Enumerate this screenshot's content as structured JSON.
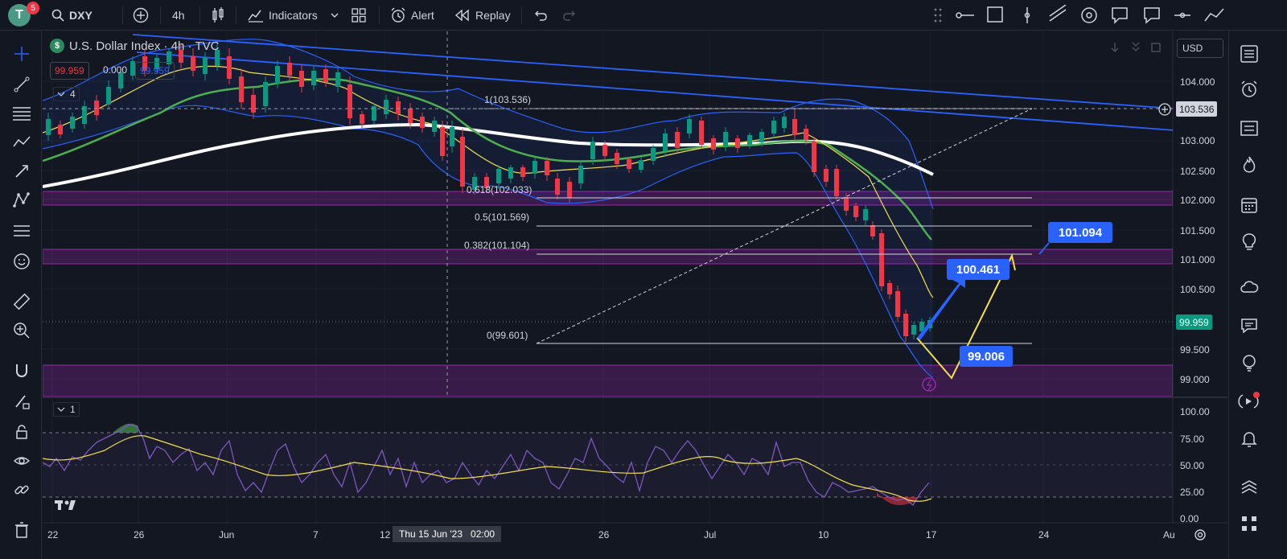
{
  "topbar": {
    "avatar_letter": "T",
    "notifications": "5",
    "symbol": "DXY",
    "interval": "4h",
    "indicators_label": "Indicators",
    "alert_label": "Alert",
    "replay_label": "Replay"
  },
  "legend": {
    "title": "U.S. Dollar Index · 4h · TVC",
    "bid": "99.959",
    "spread": "0.000",
    "ask": "99.959",
    "indicator_count": "4",
    "rsi_count": "1"
  },
  "currency": "USD",
  "fib_labels": {
    "f1": "1(103.536)",
    "f0618": "0.618(102.033)",
    "f05": "0.5(101.569)",
    "f0382": "0.382(101.104)",
    "f0": "0(99.601)"
  },
  "price_axis": [
    "104.000",
    "103.500",
    "103.000",
    "102.500",
    "102.000",
    "101.500",
    "101.000",
    "100.500",
    "100.000",
    "99.500",
    "99.000"
  ],
  "rsi_axis": [
    "100.00",
    "75.00",
    "50.00",
    "25.00",
    "0.00"
  ],
  "time_axis": [
    "22",
    "26",
    "Jun",
    "7",
    "12",
    "Thu 15 Jun '23   02:00",
    "26",
    "Jul",
    "10",
    "17",
    "24",
    "Au"
  ],
  "price_tags": {
    "line_price": "103.536",
    "current_price": "99.959"
  },
  "callouts": {
    "target_high": "101.094",
    "target_mid": "100.461",
    "target_low": "99.006"
  },
  "colors": {
    "background": "#131722",
    "accent_blue": "#2962ff",
    "bull": "#089981",
    "bear": "#f23645",
    "zone": "#9c27b0",
    "rsi_line": "#7e57c2",
    "rsi_ma": "#f4e04d"
  }
}
